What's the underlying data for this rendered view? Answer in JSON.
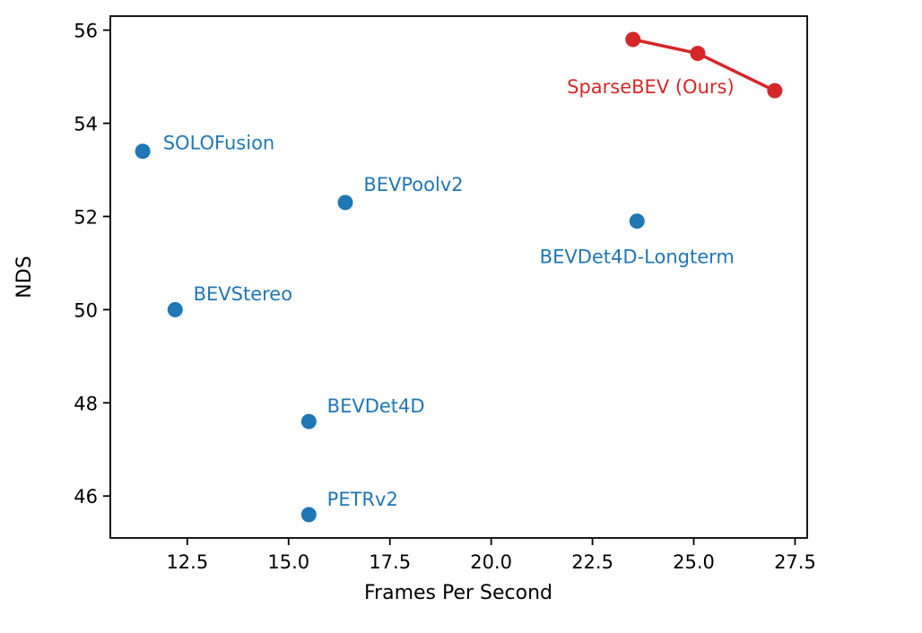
{
  "figure": {
    "background": "#ffffff"
  },
  "chart_data": {
    "type": "scatter",
    "xlabel": "Frames Per Second",
    "ylabel": "NDS",
    "xlim": [
      10.6,
      27.8
    ],
    "ylim": [
      45.1,
      56.3
    ],
    "grid": false,
    "legend_position": "none",
    "xticks": [
      {
        "v": 12.5,
        "label": "12.5"
      },
      {
        "v": 15.0,
        "label": "15.0"
      },
      {
        "v": 17.5,
        "label": "17.5"
      },
      {
        "v": 20.0,
        "label": "20.0"
      },
      {
        "v": 22.5,
        "label": "22.5"
      },
      {
        "v": 25.0,
        "label": "25.0"
      },
      {
        "v": 27.5,
        "label": "27.5"
      }
    ],
    "yticks": [
      {
        "v": 46,
        "label": "46"
      },
      {
        "v": 48,
        "label": "48"
      },
      {
        "v": 50,
        "label": "50"
      },
      {
        "v": 52,
        "label": "52"
      },
      {
        "v": 54,
        "label": "54"
      },
      {
        "v": 56,
        "label": "56"
      }
    ],
    "colors": {
      "baseline": "#1f77b4",
      "ours": "#d62728",
      "axes": "#000000"
    },
    "series": [
      {
        "name": "SOLOFusion",
        "color": "#1f77b4",
        "line": false,
        "points": [
          [
            11.4,
            53.4
          ]
        ],
        "label": {
          "text": "SOLOFusion",
          "x": 11.9,
          "y": 53.6,
          "anchor": "start"
        }
      },
      {
        "name": "BEVPoolv2",
        "color": "#1f77b4",
        "line": false,
        "points": [
          [
            16.4,
            52.3
          ]
        ],
        "label": {
          "text": "BEVPoolv2",
          "x": 16.85,
          "y": 52.7,
          "anchor": "start"
        }
      },
      {
        "name": "BEVDet4D-Longterm",
        "color": "#1f77b4",
        "line": false,
        "points": [
          [
            23.6,
            51.9
          ]
        ],
        "label": {
          "text": "BEVDet4D-Longterm",
          "x": 23.6,
          "y": 51.15,
          "anchor": "middle"
        }
      },
      {
        "name": "BEVStereo",
        "color": "#1f77b4",
        "line": false,
        "points": [
          [
            12.2,
            50.0
          ]
        ],
        "label": {
          "text": "BEVStereo",
          "x": 12.65,
          "y": 50.35,
          "anchor": "start"
        }
      },
      {
        "name": "BEVDet4D",
        "color": "#1f77b4",
        "line": false,
        "points": [
          [
            15.5,
            47.6
          ]
        ],
        "label": {
          "text": "BEVDet4D",
          "x": 15.95,
          "y": 47.95,
          "anchor": "start"
        }
      },
      {
        "name": "PETRv2",
        "color": "#1f77b4",
        "line": false,
        "points": [
          [
            15.5,
            45.6
          ]
        ],
        "label": {
          "text": "PETRv2",
          "x": 15.95,
          "y": 45.95,
          "anchor": "start"
        }
      },
      {
        "name": "SparseBEV (Ours)",
        "color": "#d62728",
        "line": true,
        "points": [
          [
            23.5,
            55.8
          ],
          [
            25.1,
            55.5
          ],
          [
            27.0,
            54.7
          ]
        ],
        "label": {
          "text": "SparseBEV (Ours)",
          "x": 26.0,
          "y": 54.8,
          "anchor": "end"
        }
      }
    ]
  }
}
